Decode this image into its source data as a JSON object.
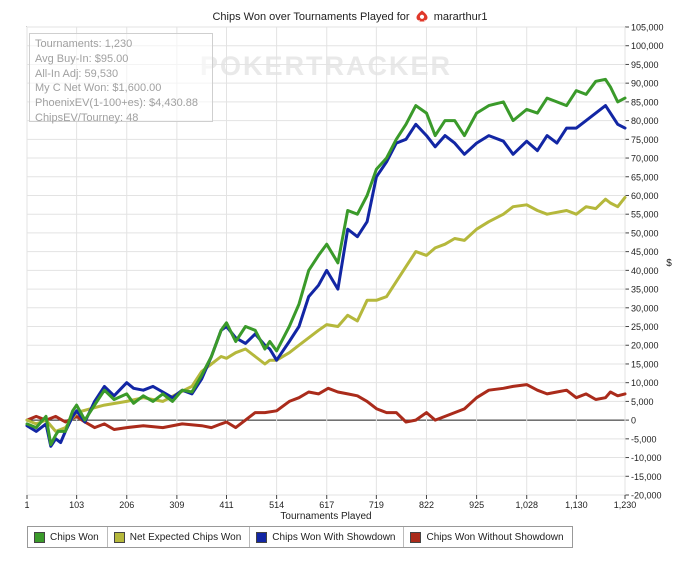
{
  "chart_data": {
    "type": "line",
    "title": "Chips Won over Tournaments Played for",
    "player": "mararthur1",
    "xlabel": "Tournaments Played",
    "ylabel": "$",
    "watermark": "POKERTRACKER",
    "xlim": [
      1,
      1230
    ],
    "ylim": [
      -20000,
      105000
    ],
    "x_ticks": [
      1,
      103,
      206,
      309,
      411,
      514,
      617,
      719,
      822,
      925,
      1028,
      1130,
      1230
    ],
    "x_tick_labels": [
      "1",
      "103",
      "206",
      "309",
      "411",
      "514",
      "617",
      "719",
      "822",
      "925",
      "1,028",
      "1,130",
      "1,230"
    ],
    "y_ticks": [
      -20000,
      -15000,
      -10000,
      -5000,
      0,
      5000,
      10000,
      15000,
      20000,
      25000,
      30000,
      35000,
      40000,
      45000,
      50000,
      55000,
      60000,
      65000,
      70000,
      75000,
      80000,
      85000,
      90000,
      95000,
      100000,
      105000
    ],
    "y_tick_labels": [
      "-20,000",
      "-15,000",
      "-10,000",
      "-5,000",
      "0",
      "5,000",
      "10,000",
      "15,000",
      "20,000",
      "25,000",
      "30,000",
      "35,000",
      "40,000",
      "45,000",
      "50,000",
      "55,000",
      "60,000",
      "65,000",
      "70,000",
      "75,000",
      "80,000",
      "85,000",
      "90,000",
      "95,000",
      "100,000",
      "105,000"
    ],
    "grid": true,
    "legend_position": "bottom",
    "stats": [
      "Tournaments: 1,230",
      "Avg Buy-In: $95.00",
      "All-In Adj: 59,530",
      "My C Net Won: $1,600.00",
      "PhoenixEV(1-100+es): $4,430.88",
      "ChipsEV/Tourney: 48"
    ],
    "series": [
      {
        "name": "Chips Won",
        "color": "#3a9a2a",
        "x": [
          1,
          20,
          40,
          50,
          60,
          65,
          80,
          95,
          103,
          120,
          140,
          160,
          180,
          206,
          220,
          240,
          260,
          280,
          300,
          320,
          340,
          360,
          380,
          400,
          411,
          430,
          450,
          470,
          490,
          500,
          514,
          540,
          560,
          580,
          600,
          617,
          640,
          660,
          680,
          700,
          719,
          740,
          760,
          780,
          800,
          822,
          840,
          860,
          880,
          900,
          925,
          950,
          980,
          1000,
          1028,
          1050,
          1070,
          1090,
          1110,
          1130,
          1150,
          1170,
          1190,
          1200,
          1215,
          1230
        ],
        "values": [
          -1000,
          -2000,
          1000,
          -6500,
          -4000,
          -3000,
          -3000,
          2500,
          4000,
          0,
          4000,
          8000,
          5500,
          7000,
          4500,
          6500,
          5000,
          7000,
          5000,
          8000,
          7500,
          12000,
          17000,
          24000,
          26000,
          21000,
          25000,
          24000,
          19000,
          21000,
          18500,
          25000,
          31000,
          40000,
          44000,
          47000,
          42000,
          56000,
          55000,
          60000,
          67000,
          70000,
          75000,
          79000,
          84000,
          82000,
          76000,
          80000,
          80000,
          76000,
          82000,
          84000,
          85000,
          80000,
          83000,
          82000,
          86000,
          85000,
          84000,
          88000,
          87000,
          90500,
          91000,
          89000,
          85000,
          86000
        ]
      },
      {
        "name": "Net Expected Chips Won",
        "color": "#b5b83c",
        "x": [
          1,
          20,
          40,
          60,
          80,
          103,
          130,
          160,
          206,
          240,
          280,
          309,
          340,
          360,
          380,
          400,
          411,
          430,
          450,
          470,
          490,
          500,
          514,
          540,
          560,
          580,
          600,
          617,
          640,
          660,
          680,
          700,
          719,
          740,
          760,
          780,
          800,
          822,
          840,
          860,
          880,
          900,
          925,
          950,
          980,
          1000,
          1028,
          1050,
          1070,
          1090,
          1110,
          1130,
          1150,
          1170,
          1190,
          1200,
          1215,
          1230
        ],
        "values": [
          0,
          -1000,
          0,
          -3000,
          -2000,
          2000,
          3000,
          4000,
          5000,
          6000,
          5000,
          7000,
          9000,
          13000,
          15000,
          17000,
          16500,
          18000,
          19000,
          17000,
          15000,
          16000,
          16000,
          18000,
          20000,
          22000,
          24000,
          25500,
          25000,
          28000,
          26500,
          32000,
          32000,
          33000,
          37000,
          41000,
          45000,
          44000,
          46000,
          47000,
          48500,
          48000,
          51000,
          53000,
          55000,
          57000,
          57500,
          56000,
          55000,
          55500,
          56000,
          55000,
          57000,
          56500,
          59000,
          58000,
          57000,
          59500
        ]
      },
      {
        "name": "Chips Won With Showdown",
        "color": "#1226a4",
        "x": [
          1,
          20,
          40,
          50,
          60,
          70,
          80,
          95,
          103,
          120,
          140,
          160,
          180,
          206,
          220,
          240,
          260,
          280,
          300,
          320,
          340,
          360,
          380,
          400,
          411,
          430,
          450,
          470,
          490,
          500,
          514,
          540,
          560,
          580,
          600,
          617,
          640,
          660,
          680,
          700,
          719,
          740,
          760,
          780,
          800,
          822,
          840,
          860,
          880,
          900,
          925,
          950,
          980,
          1000,
          1028,
          1050,
          1070,
          1090,
          1110,
          1130,
          1150,
          1170,
          1190,
          1200,
          1215,
          1230
        ],
        "values": [
          -1500,
          -3000,
          -1000,
          -7000,
          -5000,
          -6000,
          -3000,
          1000,
          2500,
          -500,
          5000,
          9000,
          6500,
          10000,
          8500,
          8000,
          9000,
          7500,
          6000,
          8000,
          7000,
          11000,
          17000,
          24000,
          25000,
          22000,
          20500,
          23000,
          20000,
          19000,
          16000,
          21000,
          25000,
          33000,
          36000,
          40000,
          35000,
          51000,
          49000,
          53000,
          65000,
          69000,
          74000,
          75000,
          79000,
          76000,
          73000,
          76000,
          74000,
          71000,
          74000,
          76000,
          74500,
          71000,
          74500,
          72000,
          76000,
          74000,
          78000,
          78000,
          80000,
          82000,
          84000,
          82000,
          79000,
          78000
        ]
      },
      {
        "name": "Chips Won Without Showdown",
        "color": "#aa2b1b",
        "x": [
          1,
          20,
          40,
          60,
          80,
          103,
          120,
          140,
          160,
          180,
          206,
          240,
          280,
          320,
          360,
          380,
          400,
          411,
          430,
          450,
          470,
          490,
          514,
          540,
          560,
          580,
          600,
          620,
          640,
          660,
          680,
          700,
          720,
          740,
          760,
          780,
          800,
          822,
          840,
          860,
          880,
          900,
          925,
          950,
          980,
          1000,
          1028,
          1050,
          1070,
          1090,
          1110,
          1130,
          1150,
          1170,
          1190,
          1200,
          1215,
          1230
        ],
        "values": [
          0,
          1000,
          0,
          1000,
          -500,
          1000,
          -500,
          -2000,
          -1000,
          -2500,
          -2000,
          -1500,
          -2000,
          -1000,
          -1500,
          -2000,
          -1000,
          -500,
          -2000,
          0,
          2000,
          2000,
          2500,
          5000,
          6000,
          7500,
          7000,
          8500,
          7500,
          7000,
          6500,
          5000,
          3000,
          2000,
          2000,
          -500,
          0,
          2000,
          0,
          1000,
          2000,
          3000,
          6000,
          8000,
          8500,
          9000,
          9500,
          8000,
          7000,
          7500,
          8000,
          6000,
          7000,
          5500,
          6000,
          7500,
          6500,
          7000
        ]
      }
    ]
  }
}
